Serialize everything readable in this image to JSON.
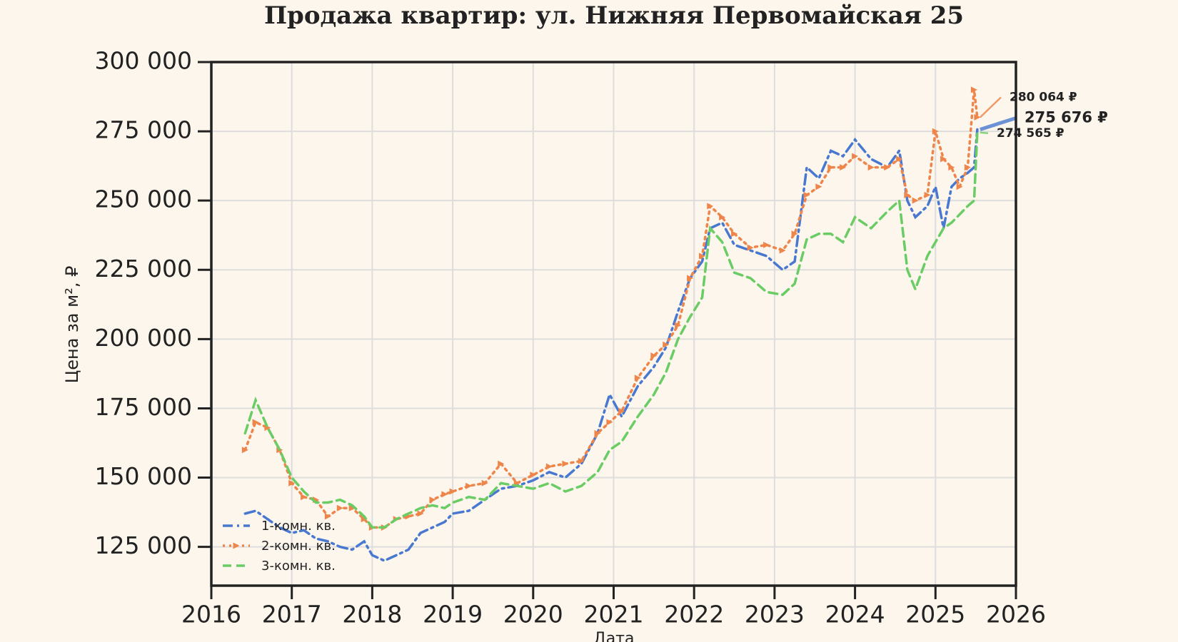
{
  "chart_data": {
    "type": "line",
    "title": "Продажа квартир: ул. Нижняя Первомайская 25",
    "x_label": "Дата",
    "y_label": "Цена за м², ₽",
    "x": [
      2016.42,
      2016.55,
      2016.7,
      2016.85,
      2017.0,
      2017.15,
      2017.3,
      2017.45,
      2017.6,
      2017.75,
      2017.9,
      2018.0,
      2018.15,
      2018.3,
      2018.45,
      2018.6,
      2018.75,
      2018.9,
      2019.0,
      2019.2,
      2019.4,
      2019.6,
      2019.8,
      2020.0,
      2020.2,
      2020.4,
      2020.6,
      2020.8,
      2020.95,
      2021.1,
      2021.3,
      2021.5,
      2021.65,
      2021.8,
      2021.95,
      2022.1,
      2022.2,
      2022.35,
      2022.5,
      2022.7,
      2022.9,
      2023.1,
      2023.25,
      2023.4,
      2023.55,
      2023.7,
      2023.85,
      2024.0,
      2024.2,
      2024.4,
      2024.55,
      2024.65,
      2024.75,
      2024.9,
      2025.0,
      2025.1,
      2025.2,
      2025.3,
      2025.4,
      2025.48,
      2025.52
    ],
    "series": [
      {
        "name": "1-комн. кв.",
        "color": "#4878d0",
        "dash": "dashdot",
        "values": [
          137000,
          138000,
          135000,
          132000,
          130000,
          131000,
          128000,
          127000,
          125000,
          124000,
          127000,
          122000,
          120000,
          122000,
          124000,
          130000,
          132000,
          134000,
          137000,
          138000,
          142000,
          146000,
          147000,
          149000,
          152000,
          150000,
          155000,
          166000,
          180000,
          172000,
          183000,
          190000,
          197000,
          210000,
          222000,
          228000,
          240000,
          242000,
          234000,
          232000,
          230000,
          225000,
          228000,
          262000,
          258000,
          268000,
          266000,
          272000,
          265000,
          262000,
          268000,
          250000,
          244000,
          248000,
          255000,
          240000,
          255000,
          258000,
          260000,
          262000,
          275676
        ],
        "last_value": 275676,
        "last_label": "275 676 ₽"
      },
      {
        "name": "2-комн. кв.",
        "color": "#ee854a",
        "dash": "dotted",
        "marker": "triangle",
        "values": [
          160000,
          170000,
          168000,
          160000,
          148000,
          143000,
          142000,
          136000,
          139000,
          139000,
          135000,
          132000,
          132000,
          135000,
          136000,
          137000,
          142000,
          144000,
          145000,
          147000,
          148000,
          155000,
          148000,
          151000,
          154000,
          155000,
          156000,
          166000,
          170000,
          174000,
          186000,
          194000,
          198000,
          205000,
          222000,
          230000,
          248000,
          244000,
          238000,
          233000,
          234000,
          232000,
          238000,
          252000,
          255000,
          262000,
          262000,
          266000,
          262000,
          262000,
          265000,
          252000,
          250000,
          252000,
          275000,
          265000,
          262000,
          255000,
          262000,
          290000,
          280064
        ],
        "last_value": 280064,
        "last_label": "280 064 ₽"
      },
      {
        "name": "3-комн. кв.",
        "color": "#6acc64",
        "dash": "dashed",
        "values": [
          166000,
          178000,
          168000,
          160000,
          150000,
          145000,
          141000,
          141000,
          142000,
          140000,
          136000,
          132000,
          132000,
          135000,
          137000,
          139000,
          140000,
          139000,
          141000,
          143000,
          142000,
          148000,
          147000,
          146000,
          148000,
          145000,
          147000,
          152000,
          160000,
          163000,
          172000,
          180000,
          188000,
          200000,
          208000,
          215000,
          240000,
          235000,
          224000,
          222000,
          217000,
          216000,
          220000,
          236000,
          238000,
          238000,
          235000,
          244000,
          240000,
          246000,
          250000,
          225000,
          218000,
          230000,
          235000,
          240000,
          242000,
          245000,
          248000,
          250000,
          274565
        ],
        "last_value": 274565,
        "last_label": "274 565 ₽"
      }
    ],
    "xlim": [
      2016,
      2026
    ],
    "xticks": [
      2016,
      2017,
      2018,
      2019,
      2020,
      2021,
      2022,
      2023,
      2024,
      2025,
      2026
    ],
    "ylim": [
      111000,
      300000
    ],
    "yticks": [
      {
        "value": 125000,
        "label": "125 000"
      },
      {
        "value": 150000,
        "label": "150 000"
      },
      {
        "value": 175000,
        "label": "175 000"
      },
      {
        "value": 200000,
        "label": "200 000"
      },
      {
        "value": 225000,
        "label": "225 000"
      },
      {
        "value": 250000,
        "label": "250 000"
      },
      {
        "value": 275000,
        "label": "275 000"
      },
      {
        "value": 300000,
        "label": "300 000"
      }
    ],
    "grid": true,
    "legend": "lower left"
  }
}
